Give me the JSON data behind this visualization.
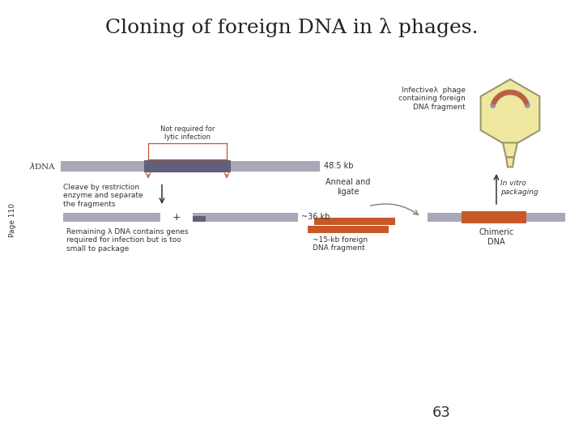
{
  "title_part1": "Cloning of foreign DNA in ",
  "title_lambda": "λ",
  "title_part2": " phages.",
  "title_fontsize": 18,
  "page_label": "Page 110",
  "page_number": "63",
  "bg_color": "#ffffff",
  "gray_bar_color": "#a8a8b8",
  "dark_bar_color": "#60607a",
  "orange_color": "#c85828",
  "phage_body_color": "#f0e8a0",
  "phage_outline_color": "#989870",
  "text_color": "#333333",
  "red_color": "#c85828",
  "arrow_color": "#666666",
  "label_fontsize": 6.5,
  "small_fontsize": 6.0
}
